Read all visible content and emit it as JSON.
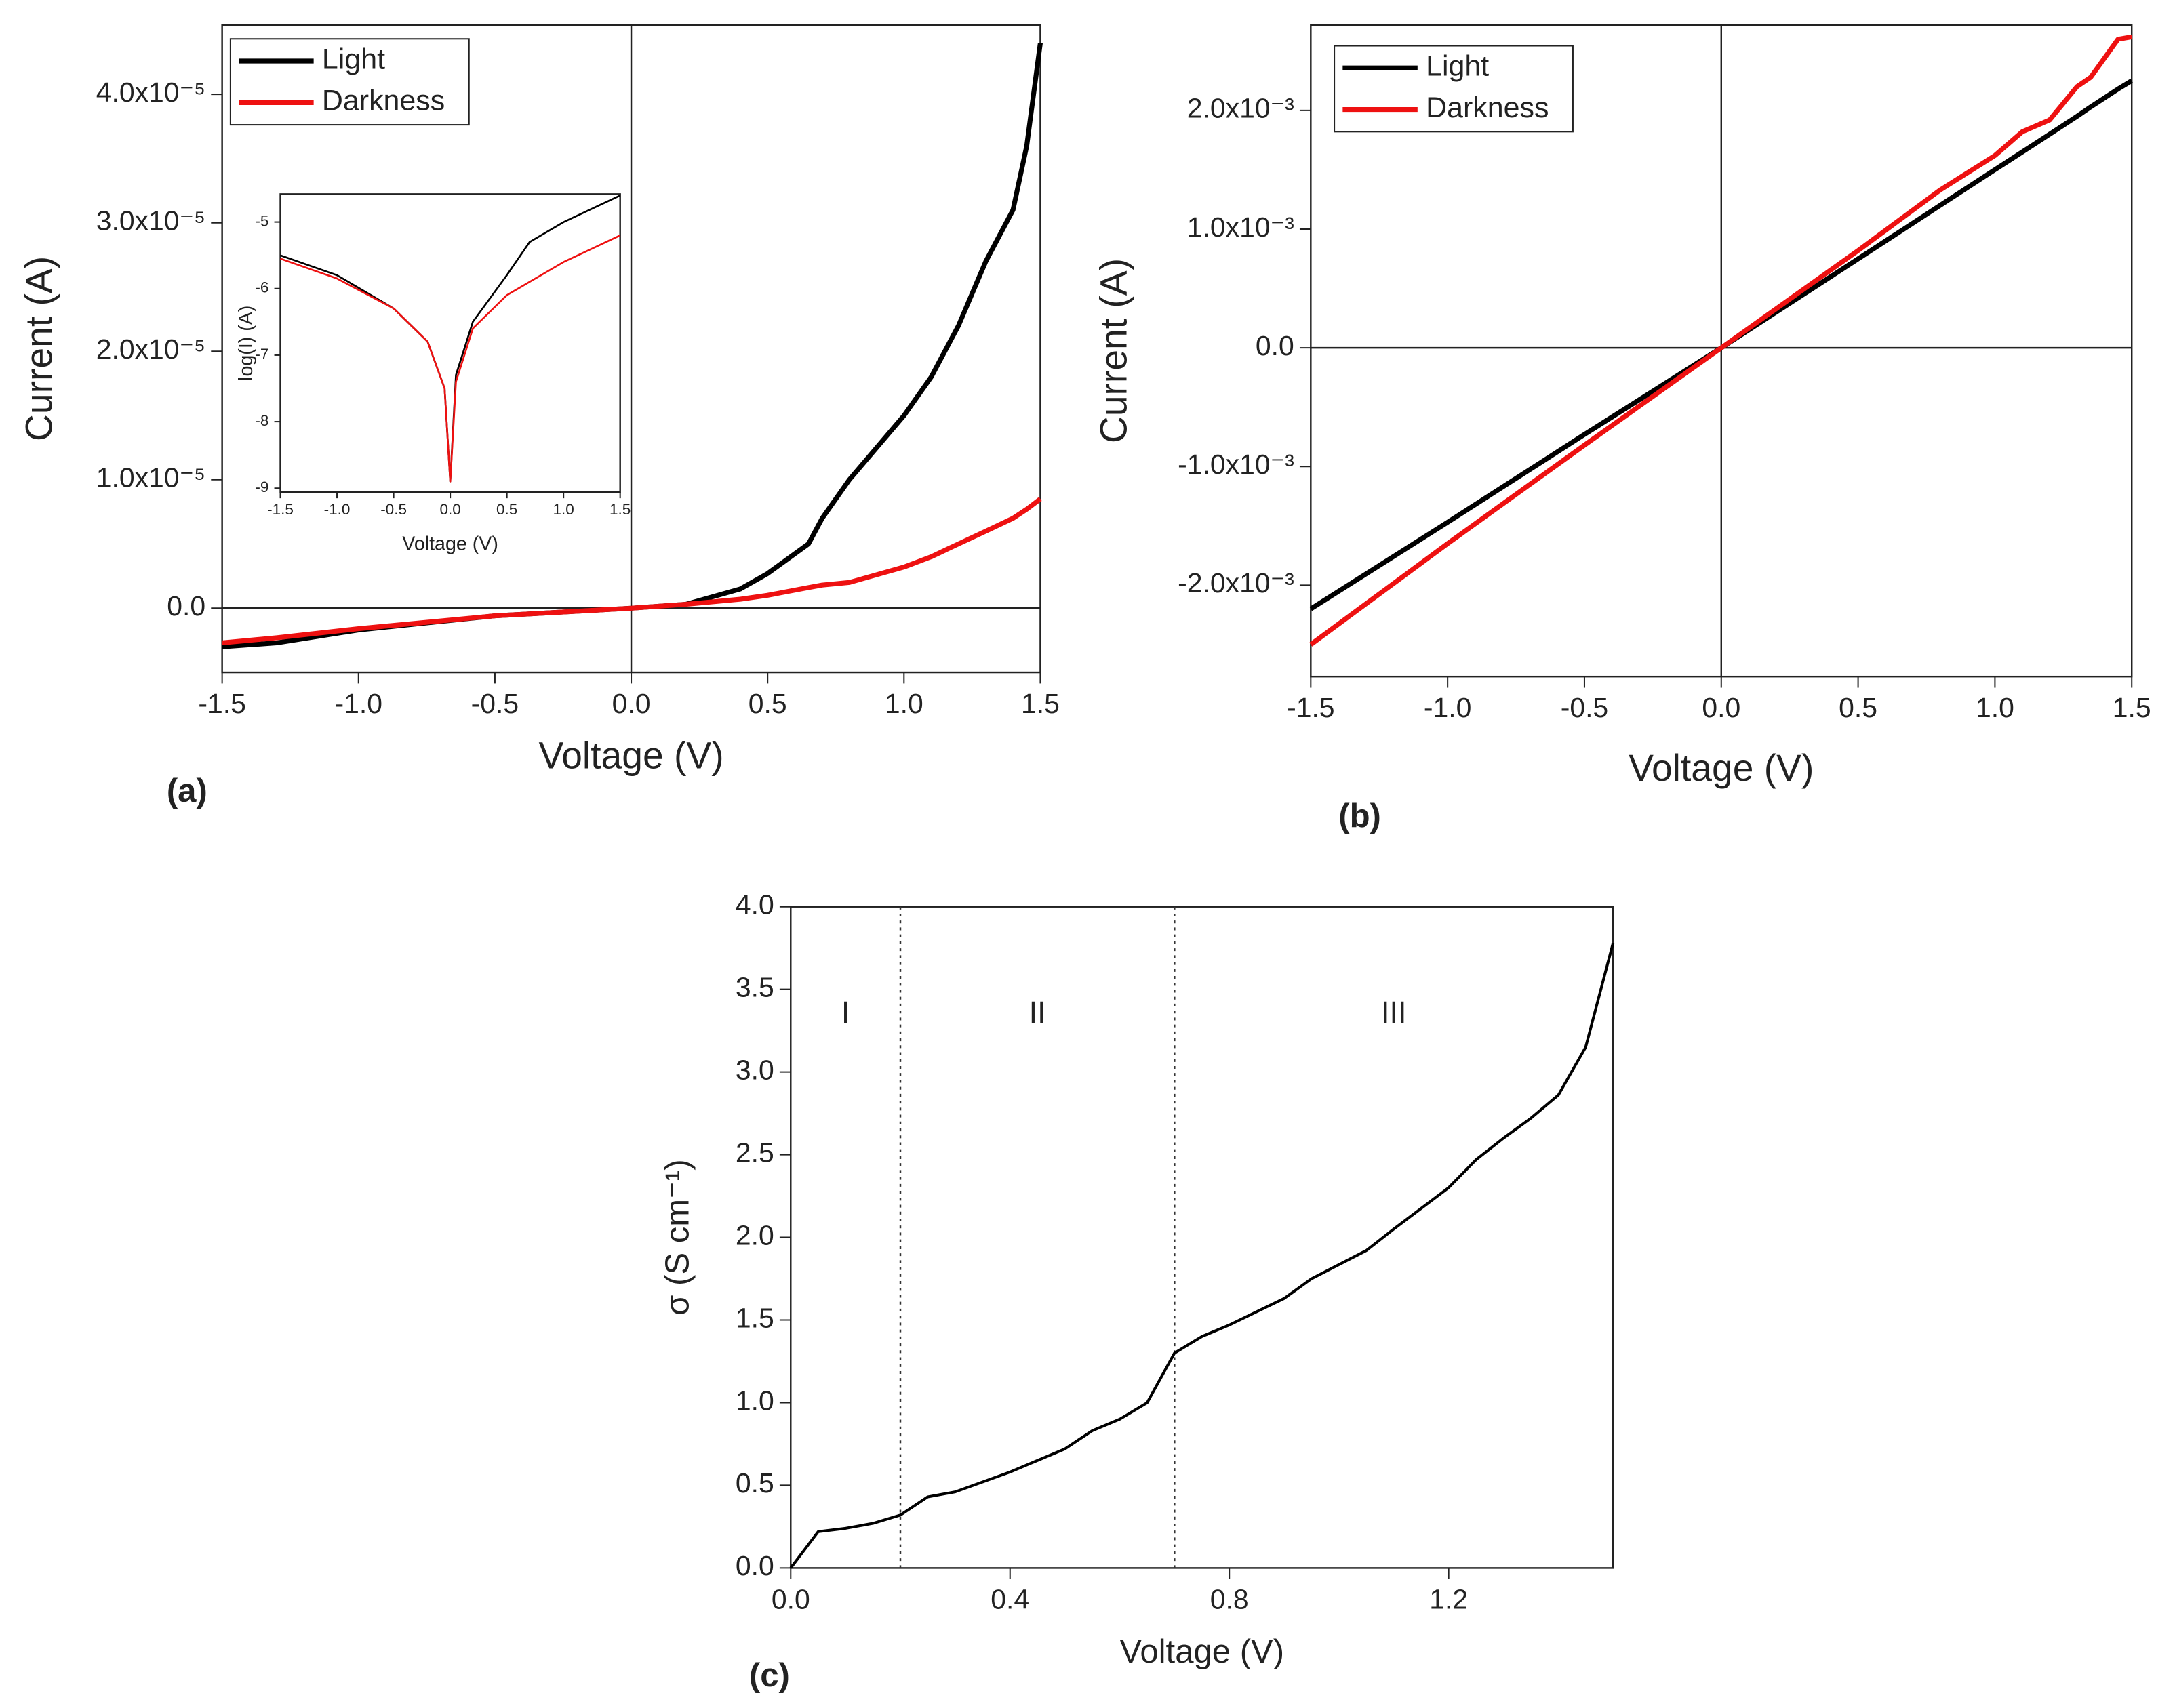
{
  "chart_data": [
    {
      "type": "line",
      "panel": "(a)",
      "xlabel": "Voltage (V)",
      "ylabel": "Current (A)",
      "x": [
        -1.5,
        -1.3,
        -1.0,
        -0.5,
        0,
        0.2,
        0.4,
        0.5,
        0.65,
        0.7,
        0.8,
        1.0,
        1.1,
        1.2,
        1.3,
        1.4,
        1.45,
        1.5
      ],
      "series": [
        {
          "name": "Light",
          "color": "#000000",
          "values": [
            -3e-06,
            -2.7e-06,
            -1.7e-06,
            -6e-07,
            0,
            3e-07,
            1.5e-06,
            2.7e-06,
            5e-06,
            7e-06,
            1e-05,
            1.5e-05,
            1.8e-05,
            2.2e-05,
            2.7e-05,
            3.1e-05,
            3.6e-05,
            4.4e-05
          ]
        },
        {
          "name": "Darkness",
          "color": "#ee1111",
          "values": [
            -2.7e-06,
            -2.3e-06,
            -1.6e-06,
            -6e-07,
            0,
            3e-07,
            7e-07,
            1e-06,
            1.6e-06,
            1.8e-06,
            2e-06,
            3.2e-06,
            4e-06,
            5e-06,
            6e-06,
            7e-06,
            7.7e-06,
            8.5e-06
          ]
        }
      ],
      "xlim": [
        -1.5,
        1.5
      ],
      "ylim": [
        -5e-06,
        4.54e-05
      ],
      "xticks": [
        -1.5,
        {
          "value": -1.0,
          "label": "-1.0"
        },
        -0.5,
        {
          "value": 0,
          "label": "0.0"
        },
        0.5,
        {
          "value": 1.0,
          "label": "1.0"
        },
        1.5
      ],
      "yticks": [
        {
          "value": 0,
          "label": "0.0"
        },
        {
          "value": 1e-05,
          "label": "1.0x10⁻⁵"
        },
        {
          "value": 2e-05,
          "label": "2.0x10⁻⁵"
        },
        {
          "value": 3e-05,
          "label": "3.0x10⁻⁵"
        },
        {
          "value": 4e-05,
          "label": "4.0x10⁻⁵"
        }
      ],
      "origin_lines": true,
      "legend": "upper left"
    },
    {
      "type": "line",
      "xlabel": "Voltage (V)",
      "ylabel": "log(I) (A)",
      "x": [
        -1.5,
        -1.0,
        -0.5,
        -0.2,
        -0.05,
        0,
        0.05,
        0.2,
        0.5,
        0.7,
        1.0,
        1.5
      ],
      "series": [
        {
          "name": "Light",
          "color": "#000000",
          "values": [
            -5.5,
            -5.8,
            -6.3,
            -6.8,
            -7.5,
            -8.9,
            -7.3,
            -6.5,
            -5.8,
            -5.3,
            -5.0,
            -4.6
          ]
        },
        {
          "name": "Darkness",
          "color": "#ee1111",
          "values": [
            -5.55,
            -5.85,
            -6.3,
            -6.8,
            -7.5,
            -8.9,
            -7.4,
            -6.6,
            -6.1,
            -5.9,
            -5.6,
            -5.2
          ]
        }
      ],
      "xlim": [
        -1.5,
        1.5
      ],
      "ylim": [
        -9.06,
        -4.58
      ],
      "xticks": [
        -1.5,
        {
          "value": -1.0,
          "label": "-1.0"
        },
        -0.5,
        {
          "value": 0,
          "label": "0.0"
        },
        0.5,
        {
          "value": 1.0,
          "label": "1.0"
        },
        1.5
      ],
      "yticks": [
        -9,
        -8,
        -7,
        -6,
        -5
      ]
    },
    {
      "type": "line",
      "panel": "(b)",
      "xlabel": "Voltage (V)",
      "ylabel": "Current (A)",
      "x": [
        -1.5,
        -1.0,
        -0.5,
        0,
        0.5,
        0.8,
        1.0,
        1.1,
        1.2,
        1.3,
        1.35,
        1.45,
        1.5
      ],
      "series": [
        {
          "name": "Light",
          "color": "#000000",
          "values": [
            -0.0022,
            -0.00147,
            -0.00073,
            0,
            0.00075,
            0.0012,
            0.0015,
            0.00165,
            0.0018,
            0.00195,
            0.00203,
            0.00218,
            0.00225
          ]
        },
        {
          "name": "Darkness",
          "color": "#ee1111",
          "values": [
            -0.0025,
            -0.00165,
            -0.00082,
            0,
            0.00082,
            0.00133,
            0.00162,
            0.00182,
            0.00192,
            0.0022,
            0.00228,
            0.0026,
            0.00262
          ]
        }
      ],
      "xlim": [
        -1.5,
        1.5
      ],
      "ylim": [
        -0.00277,
        0.00272
      ],
      "xticks": [
        -1.5,
        {
          "value": -1.0,
          "label": "-1.0"
        },
        -0.5,
        {
          "value": 0,
          "label": "0.0"
        },
        0.5,
        {
          "value": 1.0,
          "label": "1.0"
        },
        1.5
      ],
      "yticks": [
        {
          "value": -0.002,
          "label": "-2.0x10⁻³"
        },
        {
          "value": -0.001,
          "label": "-1.0x10⁻³"
        },
        {
          "value": 0,
          "label": "0.0"
        },
        {
          "value": 0.001,
          "label": "1.0x10⁻³"
        },
        {
          "value": 0.002,
          "label": "2.0x10⁻³"
        }
      ],
      "origin_lines": true,
      "legend": "upper left"
    },
    {
      "type": "line",
      "panel": "(c)",
      "xlabel": "Voltage (V)",
      "ylabel": "σ (S cm⁻¹)",
      "x": [
        0,
        0.05,
        0.1,
        0.15,
        0.2,
        0.25,
        0.3,
        0.4,
        0.5,
        0.55,
        0.6,
        0.65,
        0.7,
        0.75,
        0.8,
        0.9,
        0.95,
        1.05,
        1.1,
        1.2,
        1.25,
        1.3,
        1.35,
        1.4,
        1.45,
        1.5
      ],
      "series": [
        {
          "color": "#000000",
          "values": [
            0,
            0.22,
            0.24,
            0.27,
            0.32,
            0.43,
            0.46,
            0.58,
            0.72,
            0.83,
            0.9,
            1.0,
            1.3,
            1.4,
            1.47,
            1.63,
            1.75,
            1.92,
            2.05,
            2.3,
            2.47,
            2.6,
            2.72,
            2.86,
            3.15,
            3.78
          ]
        }
      ],
      "xlim": [
        0,
        1.5
      ],
      "ylim": [
        0,
        4
      ],
      "xticks": [
        {
          "value": 0,
          "label": "0.0"
        },
        0.4,
        0.8,
        1.2
      ],
      "yticks": [
        {
          "value": 0,
          "label": "0.0"
        },
        0.5,
        {
          "value": 1,
          "label": "1.0"
        },
        1.5,
        {
          "value": 2,
          "label": "2.0"
        },
        2.5,
        {
          "value": 3,
          "label": "3.0"
        },
        3.5,
        {
          "value": 4,
          "label": "4.0"
        }
      ],
      "vlines": [
        0.2,
        0.7
      ],
      "annotations": [
        "I",
        "II",
        "III"
      ]
    }
  ]
}
